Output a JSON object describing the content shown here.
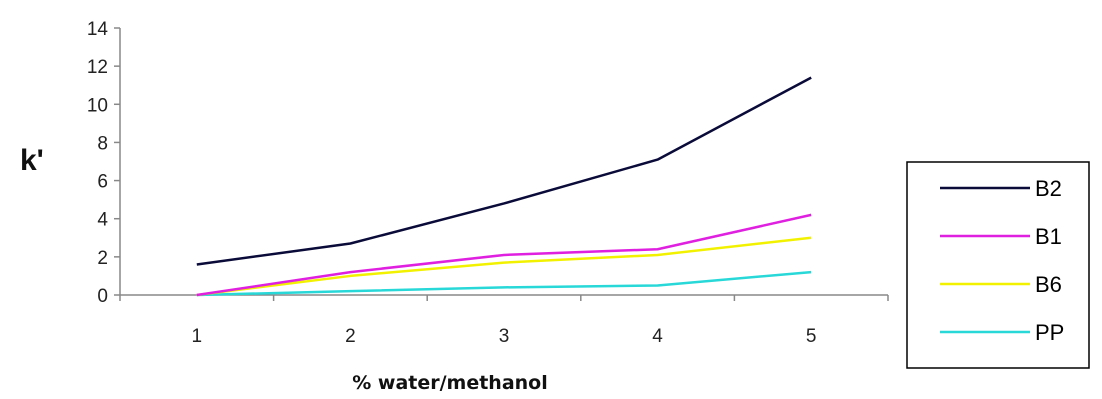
{
  "chart_data": {
    "type": "line",
    "title": "",
    "xlabel": "% water/methanol",
    "ylabel": "k'",
    "categories": [
      "1",
      "2",
      "3",
      "4",
      "5"
    ],
    "ylim": [
      0,
      14
    ],
    "yticks": [
      "0",
      "2",
      "4",
      "6",
      "8",
      "10",
      "12",
      "14"
    ],
    "grid": false,
    "legend_position": "right",
    "series": [
      {
        "name": "B2",
        "color": "#0b0b3a",
        "values": [
          1.6,
          2.7,
          4.8,
          7.1,
          11.4
        ]
      },
      {
        "name": "B1",
        "color": "#e020e0",
        "values": [
          0.0,
          1.2,
          2.1,
          2.4,
          4.2
        ]
      },
      {
        "name": "B6",
        "color": "#f2f200",
        "values": [
          0.0,
          1.0,
          1.7,
          2.1,
          3.0
        ]
      },
      {
        "name": "PP",
        "color": "#28d8d8",
        "values": [
          0.0,
          0.2,
          0.4,
          0.5,
          1.2
        ]
      }
    ]
  }
}
